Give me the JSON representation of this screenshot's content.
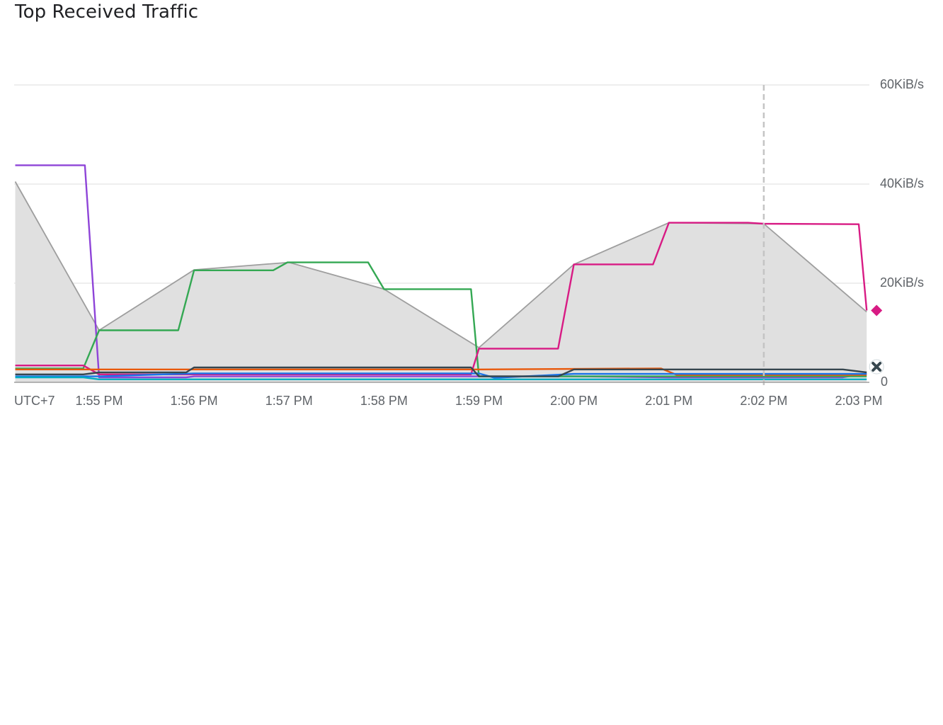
{
  "panel": {
    "title": "Top Received Traffic"
  },
  "chart_data": {
    "type": "line",
    "title": "Top Received Traffic",
    "timezone_label": "UTC+7",
    "y_unit": "KiB/s",
    "ylim": [
      0,
      60
    ],
    "y_ticks": [
      {
        "value": 0,
        "label": "0"
      },
      {
        "value": 20,
        "label": "20KiB/s"
      },
      {
        "value": 40,
        "label": "40KiB/s"
      },
      {
        "value": 60,
        "label": "60KiB/s"
      }
    ],
    "x_ticks": [
      {
        "t": 0,
        "label": "1:55 PM"
      },
      {
        "t": 60,
        "label": "1:56 PM"
      },
      {
        "t": 120,
        "label": "1:57 PM"
      },
      {
        "t": 180,
        "label": "1:58 PM"
      },
      {
        "t": 240,
        "label": "1:59 PM"
      },
      {
        "t": 300,
        "label": "2:00 PM"
      },
      {
        "t": 360,
        "label": "2:01 PM"
      },
      {
        "t": 420,
        "label": "2:02 PM"
      },
      {
        "t": 480,
        "label": "2:03 PM"
      }
    ],
    "x_range_seconds": [
      -53,
      487
    ],
    "cursor_t": 420,
    "grid": true,
    "legend": "none",
    "series": [
      {
        "kind": "area",
        "color": "#9e9e9e",
        "fill": "#e0e0e0",
        "points": [
          [
            -53,
            40.5
          ],
          [
            0,
            10.5
          ],
          [
            60,
            22.7
          ],
          [
            120,
            24.2
          ],
          [
            180,
            18.8
          ],
          [
            240,
            7
          ],
          [
            300,
            23.8
          ],
          [
            360,
            32.2
          ],
          [
            420,
            32
          ],
          [
            485,
            14.2
          ]
        ]
      },
      {
        "color": "#8e44d8",
        "points": [
          [
            -53,
            43.8
          ],
          [
            -9,
            43.8
          ],
          [
            0,
            1
          ],
          [
            55,
            1
          ],
          [
            60,
            1.2
          ],
          [
            300,
            1.2
          ],
          [
            360,
            1
          ],
          [
            470,
            1
          ],
          [
            485,
            1.8
          ]
        ]
      },
      {
        "color": "#34a853",
        "points": [
          [
            -53,
            2.8
          ],
          [
            -10,
            2.8
          ],
          [
            0,
            10.5
          ],
          [
            50,
            10.5
          ],
          [
            60,
            22.6
          ],
          [
            110,
            22.6
          ],
          [
            119,
            24.2
          ],
          [
            170,
            24.2
          ],
          [
            180,
            18.8
          ],
          [
            235,
            18.8
          ],
          [
            240,
            1.2
          ],
          [
            485,
            1.2
          ]
        ]
      },
      {
        "color": "#d81b84",
        "points": [
          [
            -53,
            3.4
          ],
          [
            -10,
            3.4
          ],
          [
            0,
            1.6
          ],
          [
            235,
            1.6
          ],
          [
            240,
            6.8
          ],
          [
            290,
            6.8
          ],
          [
            300,
            23.8
          ],
          [
            350,
            23.8
          ],
          [
            360,
            32.2
          ],
          [
            410,
            32.2
          ],
          [
            420,
            32
          ],
          [
            480,
            31.9
          ],
          [
            485,
            14.5
          ]
        ]
      },
      {
        "color": "#e8590c",
        "points": [
          [
            -53,
            2.6
          ],
          [
            -10,
            2.6
          ],
          [
            0,
            2.6
          ],
          [
            235,
            2.6
          ],
          [
            240,
            2.6
          ],
          [
            355,
            2.8
          ],
          [
            365,
            1.5
          ],
          [
            485,
            1.5
          ]
        ]
      },
      {
        "color": "#1a73e8",
        "points": [
          [
            -53,
            1.2
          ],
          [
            0,
            1.2
          ],
          [
            60,
            1.8
          ],
          [
            240,
            1.8
          ],
          [
            250,
            0.9
          ],
          [
            300,
            1.7
          ],
          [
            485,
            1.7
          ]
        ]
      },
      {
        "color": "#00acc1",
        "points": [
          [
            -53,
            1
          ],
          [
            -10,
            1
          ],
          [
            0,
            0.6
          ],
          [
            485,
            0.6
          ]
        ]
      },
      {
        "color": "#37474f",
        "points": [
          [
            -53,
            1.6
          ],
          [
            -10,
            1.6
          ],
          [
            0,
            2
          ],
          [
            55,
            2
          ],
          [
            60,
            3
          ],
          [
            235,
            3
          ],
          [
            240,
            1.2
          ],
          [
            290,
            1.2
          ],
          [
            300,
            2.6
          ],
          [
            470,
            2.6
          ],
          [
            485,
            2
          ]
        ]
      }
    ],
    "end_markers": [
      {
        "shape": "diamond",
        "color": "#d81b84",
        "t": 485,
        "value": 14.5
      },
      {
        "shape": "x-circle",
        "color": "#37474f",
        "t": 485,
        "value": 2
      }
    ]
  }
}
